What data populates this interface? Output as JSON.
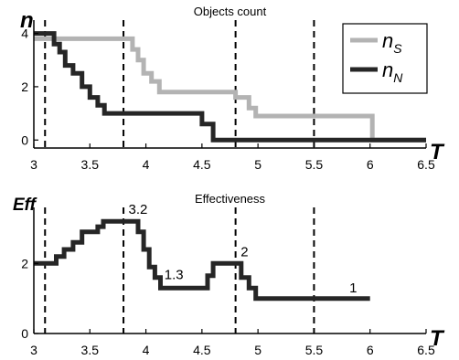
{
  "chart_data": [
    {
      "type": "line",
      "title": "Objects count",
      "ylabel": "n",
      "xlabel": "T",
      "xlim": [
        3,
        6.5
      ],
      "ylim": [
        -0.3,
        4.5
      ],
      "xticks": [
        "3",
        "3.5",
        "4",
        "4.5",
        "5",
        "5.5",
        "6",
        "6.5"
      ],
      "yticks": [
        "0",
        "2",
        "4"
      ],
      "vlines": [
        3.1,
        3.8,
        4.8,
        5.5
      ],
      "legend": {
        "position": "top-right",
        "entries": [
          "n",
          "n"
        ],
        "subscripts": [
          "S",
          "N"
        ]
      },
      "series": [
        {
          "name": "nS",
          "color": "#b3b3b3",
          "x": [
            3.0,
            3.88,
            3.88,
            3.93,
            3.93,
            3.98,
            3.98,
            4.05,
            4.05,
            4.12,
            4.12,
            4.8,
            4.8,
            4.92,
            4.92,
            4.98,
            4.98,
            6.02,
            6.02,
            6.5
          ],
          "y": [
            3.8,
            3.8,
            3.4,
            3.4,
            3.0,
            3.0,
            2.5,
            2.5,
            2.2,
            2.2,
            1.8,
            1.8,
            1.6,
            1.6,
            1.2,
            1.2,
            0.9,
            0.9,
            0.0,
            0.0
          ]
        },
        {
          "name": "nN",
          "color": "#262626",
          "x": [
            3.0,
            3.18,
            3.18,
            3.23,
            3.23,
            3.28,
            3.28,
            3.35,
            3.35,
            3.43,
            3.43,
            3.5,
            3.5,
            3.57,
            3.57,
            3.63,
            3.63,
            4.5,
            4.5,
            4.6,
            4.6,
            6.5
          ],
          "y": [
            4.0,
            4.0,
            3.6,
            3.6,
            3.3,
            3.3,
            2.8,
            2.8,
            2.5,
            2.5,
            2.0,
            2.0,
            1.6,
            1.6,
            1.3,
            1.3,
            1.0,
            1.0,
            0.6,
            0.6,
            0.0,
            0.0
          ]
        }
      ]
    },
    {
      "type": "line",
      "title": "Effectiveness",
      "ylabel": "Eff",
      "xlabel": "T",
      "xlim": [
        3,
        6.5
      ],
      "ylim": [
        0,
        3.6
      ],
      "xticks": [
        "3",
        "3.5",
        "4",
        "4.5",
        "5",
        "5.5",
        "6",
        "6.5"
      ],
      "yticks": [
        "0",
        "2"
      ],
      "vlines": [
        3.1,
        3.8,
        4.8,
        5.5
      ],
      "annotations": [
        {
          "text": "3.2",
          "x": 3.93,
          "y": 3.42
        },
        {
          "text": "1.3",
          "x": 4.25,
          "y": 1.55
        },
        {
          "text": "2",
          "x": 4.88,
          "y": 2.2
        },
        {
          "text": "1",
          "x": 5.85,
          "y": 1.17
        }
      ],
      "series": [
        {
          "name": "Eff",
          "color": "#262626",
          "x": [
            3.0,
            3.2,
            3.2,
            3.27,
            3.27,
            3.35,
            3.35,
            3.43,
            3.43,
            3.57,
            3.57,
            3.62,
            3.62,
            3.93,
            3.93,
            3.98,
            3.98,
            4.03,
            4.03,
            4.08,
            4.08,
            4.13,
            4.13,
            4.55,
            4.55,
            4.6,
            4.6,
            4.85,
            4.85,
            4.92,
            4.92,
            4.98,
            4.98,
            6.0
          ],
          "y": [
            2.0,
            2.0,
            2.2,
            2.2,
            2.4,
            2.4,
            2.6,
            2.6,
            2.9,
            2.9,
            3.05,
            3.05,
            3.2,
            3.2,
            2.9,
            2.9,
            2.4,
            2.4,
            1.9,
            1.9,
            1.6,
            1.6,
            1.3,
            1.3,
            1.65,
            1.65,
            2.0,
            2.0,
            1.6,
            1.6,
            1.3,
            1.3,
            1.0,
            1.0
          ]
        }
      ]
    }
  ]
}
